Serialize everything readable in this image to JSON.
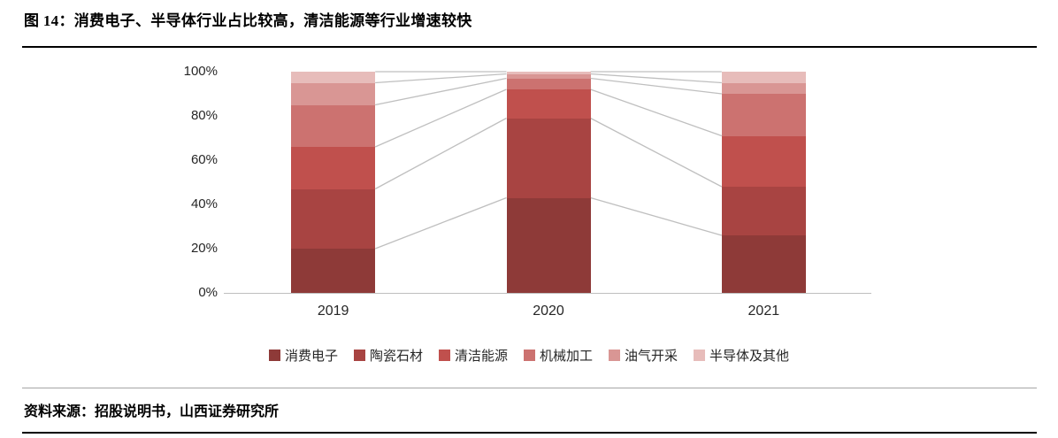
{
  "figure": {
    "title": "图 14：消费电子、半导体行业占比较高，清洁能源等行业增速较快",
    "source": "资料来源：招股说明书，山西证券研究所"
  },
  "chart_data": {
    "type": "bar",
    "variant": "100-percent-stacked-column-with-series-lines",
    "title": "图 14：消费电子、半导体行业占比较高，清洁能源等行业增速较快",
    "categories": [
      "2019",
      "2020",
      "2021"
    ],
    "series": [
      {
        "name": "消费电子",
        "color": "#8e3a38",
        "values": [
          20,
          43,
          26
        ]
      },
      {
        "name": "陶瓷石材",
        "color": "#a84442",
        "values": [
          27,
          36,
          22
        ]
      },
      {
        "name": "清洁能源",
        "color": "#c0504d",
        "values": [
          19,
          13,
          23
        ]
      },
      {
        "name": "机械加工",
        "color": "#cc7270",
        "values": [
          19,
          5,
          19
        ]
      },
      {
        "name": "油气开采",
        "color": "#d99694",
        "values": [
          10,
          2,
          5
        ]
      },
      {
        "name": "半导体及其他",
        "color": "#e7bcba",
        "values": [
          5,
          1,
          5
        ]
      }
    ],
    "unit": "%",
    "ylim": [
      0,
      100
    ],
    "yticks": [
      "0%",
      "20%",
      "40%",
      "60%",
      "80%",
      "100%"
    ],
    "gridlines": false,
    "legend_position": "bottom",
    "series_line_color": "#bfbfbf",
    "axis_text_color": "#262626"
  }
}
